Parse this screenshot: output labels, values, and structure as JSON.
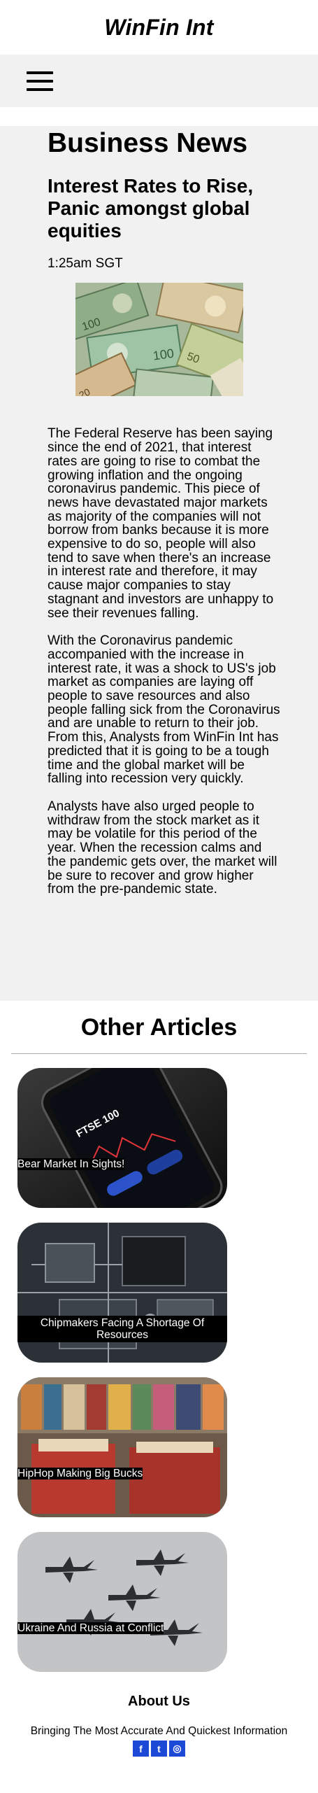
{
  "site": {
    "title": "WinFin Int"
  },
  "nav": {
    "menu_icon": "hamburger-menu-icon"
  },
  "article": {
    "section": "Business News",
    "headline": "Interest Rates to Rise, Panic amongst global equities",
    "time": "1:25am SGT",
    "paragraphs": [
      "The Federal Reserve has been saying since the end of 2021, that interest rates are going to rise to combat the growing inflation and the ongoing coronavirus pandemic. This piece of news have devastated major markets as majority of the companies will not borrow from banks because it is more expensive to do so, people will also tend to save when there's an increase in interest rate and therefore, it may cause major companies to stay stagnant and investors are unhappy to see their revenues falling.",
      "With the Coronavirus pandemic accompanied with the increase in interest rate, it was a shock to US's job market as companies are laying off people to save resources and also people falling sick from the Coronavirus and are unable to return to their job. From this, Analysts from WinFin Int has predicted that it is going to be a tough time and the global market will be falling into recession very quickly.",
      "Analysts have also urged people to withdraw from the stock market as it may be volatile for this period of the year. When the recession calms and the pandemic gets over, the market will be sure to recover and grow higher from the pre-pandemic state."
    ]
  },
  "other": {
    "title": "Other Articles",
    "cards": [
      {
        "caption": "Bear Market In Sights!"
      },
      {
        "caption": "Chipmakers Facing A Shortage Of Resources"
      },
      {
        "caption": "HipHop Making Big Bucks"
      },
      {
        "caption": "Ukraine And Russia at Conflict"
      }
    ]
  },
  "phone_screen": {
    "ticker": "FTSE 100"
  },
  "about": {
    "title": "About Us",
    "text": "Bringing The Most Accurate And Quickest Information",
    "socials": [
      {
        "glyph": "f",
        "icon": "facebook-icon"
      },
      {
        "glyph": "t",
        "icon": "twitter-icon"
      },
      {
        "glyph": "◎",
        "icon": "instagram-icon"
      }
    ]
  }
}
